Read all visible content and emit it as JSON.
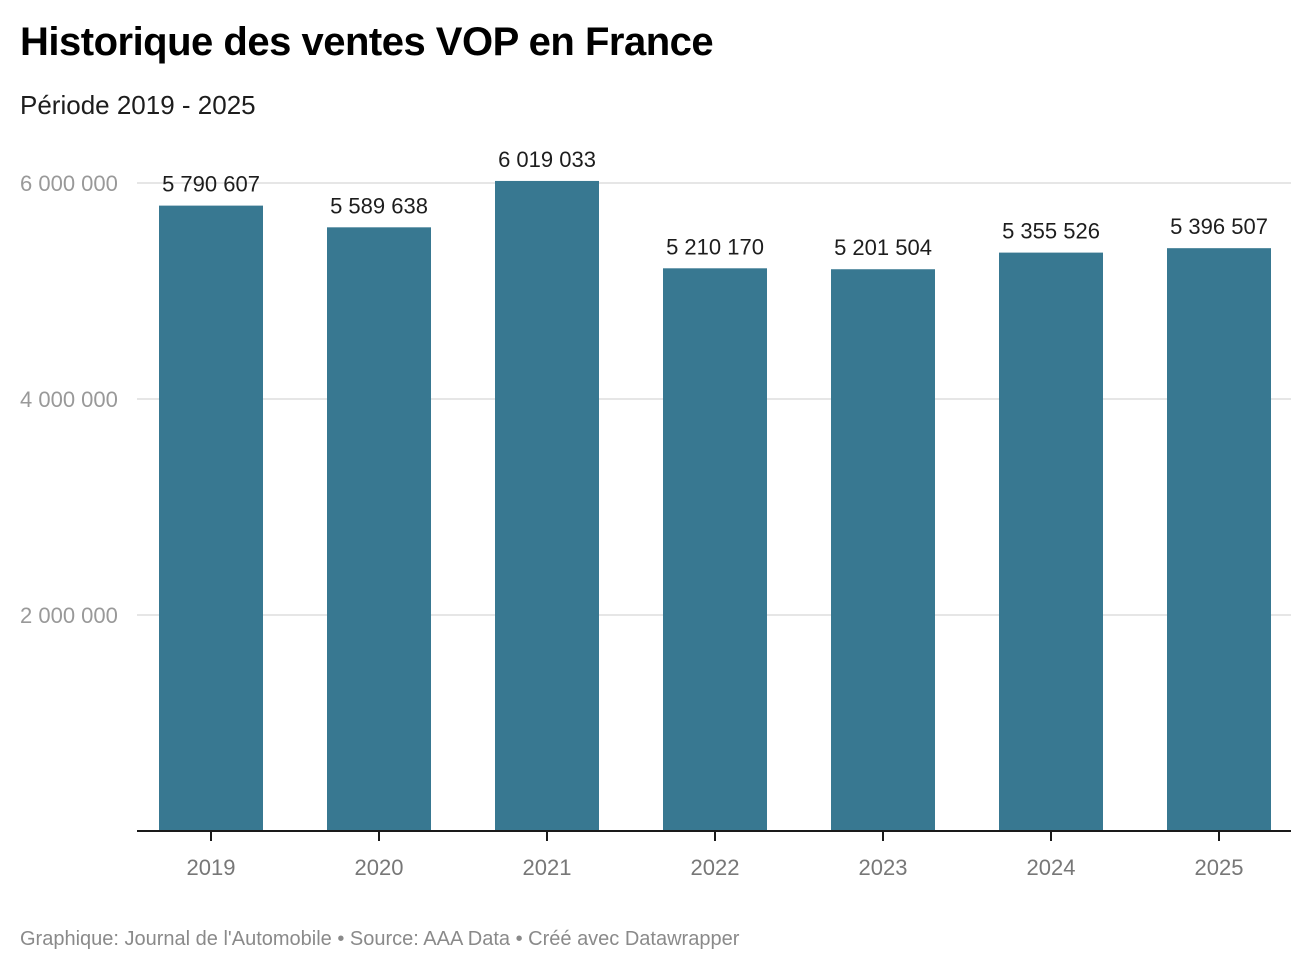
{
  "header": {
    "title": "Historique des ventes VOP en France",
    "subtitle": "Période 2019 - 2025"
  },
  "footer": {
    "graphic_credit": "Graphique: Journal de l'Automobile",
    "separator": " • ",
    "source": "Source: AAA Data",
    "tool": "Créé avec Datawrapper"
  },
  "colors": {
    "bar": "#387891",
    "grid": "#e6e6e6",
    "axis": "#1a1a1a",
    "tick_label": "#999999",
    "x_label": "#777777",
    "value_label": "#1d1d1d"
  },
  "chart_data": {
    "type": "bar",
    "title": "Historique des ventes VOP en France",
    "subtitle": "Période 2019 - 2025",
    "xlabel": "",
    "ylabel": "",
    "categories": [
      "2019",
      "2020",
      "2021",
      "2022",
      "2023",
      "2024",
      "2025"
    ],
    "values": [
      5790607,
      5589638,
      6019033,
      5210170,
      5201504,
      5355526,
      5396507
    ],
    "value_labels": [
      "5 790 607",
      "5 589 638",
      "6 019 033",
      "5 210 170",
      "5 201 504",
      "5 355 526",
      "5 396 507"
    ],
    "ylim": [
      0,
      6000000
    ],
    "yticks": [
      2000000,
      4000000,
      6000000
    ],
    "ytick_labels": [
      "2 000 000",
      "4 000 000",
      "6 000 000"
    ],
    "grid": true,
    "legend": "none"
  }
}
